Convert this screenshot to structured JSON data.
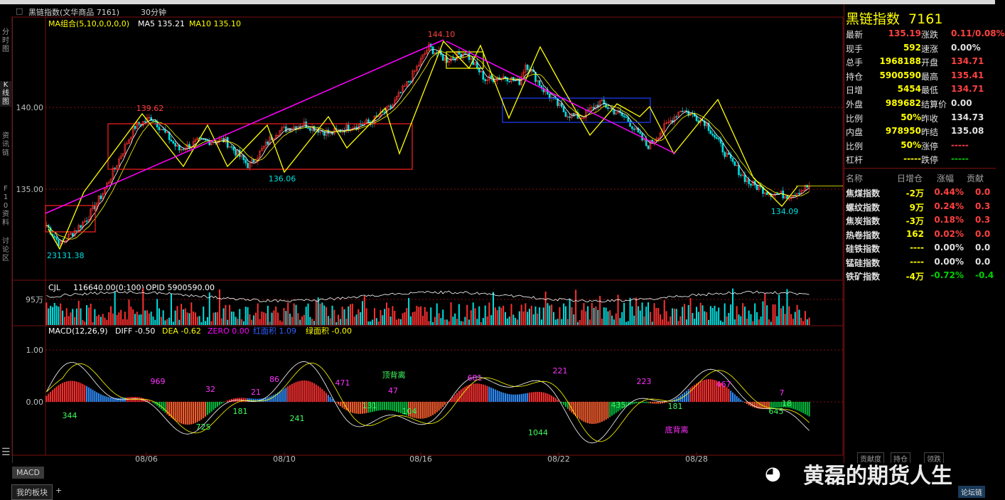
{
  "window": {
    "title": "黑链指数(文华商品  7161)",
    "period": "30分钟",
    "code": "7161",
    "name": "黑链指数"
  },
  "left_nav": [
    {
      "label": "分时图",
      "active": false
    },
    {
      "label": "K线图",
      "active": true
    },
    {
      "label": "资讯链",
      "active": false
    },
    {
      "label": "F10资料",
      "active": false
    },
    {
      "label": "讨论区",
      "active": false
    }
  ],
  "main_legend": {
    "ma_group": "MA组合(5,10,0,0,0,0)",
    "ma5": "MA5 135.21",
    "ma10": "MA10 135.10"
  },
  "price_axis": {
    "labels": [
      "140.00",
      "135.00"
    ]
  },
  "annotations": {
    "high_main": "144.10",
    "high_left": "139.62",
    "low_mid": "136.06",
    "low_right": "134.09",
    "low_left": "131.38",
    "low_left_prefix": "23"
  },
  "volume_legend": {
    "cjl": "CJL",
    "value": "116640.00(0:100)",
    "opid": "OPID 5900590.00",
    "axis_label": "95万"
  },
  "macd_legend": {
    "name": "MACD(12,26,9)",
    "diff": "DIFF -0.50",
    "dea": "DEA -0.62",
    "zero": "ZERO 0.00",
    "red_area": "红面积 1.09",
    "green_area": "绿面积 -0.00"
  },
  "macd_axis": {
    "labels": [
      "1.00",
      "0.00"
    ]
  },
  "macd_annotations": [
    {
      "text": "344",
      "color": "green"
    },
    {
      "text": "969",
      "color": "magenta"
    },
    {
      "text": "725",
      "color": "green"
    },
    {
      "text": "32",
      "color": "magenta"
    },
    {
      "text": "181",
      "color": "green"
    },
    {
      "text": "21",
      "color": "magenta"
    },
    {
      "text": "86",
      "color": "magenta"
    },
    {
      "text": "241",
      "color": "green"
    },
    {
      "text": "471",
      "color": "magenta"
    },
    {
      "text": "131",
      "color": "green"
    },
    {
      "text": "顶背离",
      "color": "green"
    },
    {
      "text": "47",
      "color": "magenta"
    },
    {
      "text": "104",
      "color": "green"
    },
    {
      "text": "681",
      "color": "magenta"
    },
    {
      "text": "1044",
      "color": "green"
    },
    {
      "text": "221",
      "color": "magenta"
    },
    {
      "text": "435",
      "color": "green"
    },
    {
      "text": "223",
      "color": "magenta"
    },
    {
      "text": "181",
      "color": "green"
    },
    {
      "text": "底背离",
      "color": "magenta"
    },
    {
      "text": "467",
      "color": "magenta"
    },
    {
      "text": "645",
      "color": "green"
    },
    {
      "text": "18",
      "color": "green"
    },
    {
      "text": "7",
      "color": "magenta"
    }
  ],
  "date_axis": {
    "labels": [
      "08/06",
      "08/10",
      "08/16",
      "08/22",
      "08/28"
    ]
  },
  "quote": {
    "title_name": "黑链指数",
    "title_code": "7161",
    "rows": [
      [
        {
          "label": "最新",
          "value": "135.19",
          "c": "#ff4040"
        },
        {
          "label": "涨跌",
          "value": "0.11/0.08%",
          "c": "#ff4040"
        }
      ],
      [
        {
          "label": "现手",
          "value": "592",
          "c": "#ffff00"
        },
        {
          "label": "速涨",
          "value": "0.00%",
          "c": "#e0e0e0"
        }
      ],
      [
        {
          "label": "总手",
          "value": "1968188",
          "c": "#ffff00"
        },
        {
          "label": "开盘",
          "value": "134.71",
          "c": "#ff4040"
        }
      ],
      [
        {
          "label": "持仓",
          "value": "5900590",
          "c": "#ffff00"
        },
        {
          "label": "最高",
          "value": "135.41",
          "c": "#ff4040"
        }
      ],
      [
        {
          "label": "日增",
          "value": "5454",
          "c": "#ffff00"
        },
        {
          "label": "最低",
          "value": "134.71",
          "c": "#ff4040"
        }
      ],
      [
        {
          "label": "外盘",
          "value": "989682",
          "c": "#ffff00"
        },
        {
          "label": "结算价",
          "value": "0.00",
          "c": "#e0e0e0"
        }
      ],
      [
        {
          "label": "比例",
          "value": "50%",
          "c": "#ffff00"
        },
        {
          "label": "昨收",
          "value": "134.73",
          "c": "#e0e0e0"
        }
      ],
      [
        {
          "label": "内盘",
          "value": "978950",
          "c": "#ffff00"
        },
        {
          "label": "昨结",
          "value": "135.08",
          "c": "#e0e0e0"
        }
      ],
      [
        {
          "label": "比例",
          "value": "50%",
          "c": "#ffff00"
        },
        {
          "label": "涨停",
          "value": "-----",
          "c": "#ff4040"
        }
      ],
      [
        {
          "label": "杠杆",
          "value": "-----",
          "c": "#ffff00"
        },
        {
          "label": "跌停",
          "value": "-----",
          "c": "#00d000"
        }
      ]
    ]
  },
  "component_table": {
    "headers": [
      "名称",
      "日增仓",
      "涨幅",
      "贡献"
    ],
    "rows": [
      {
        "name": "焦煤指数",
        "inc": "-2万",
        "chg": "0.44%",
        "contrib": "0.0",
        "c": "#ff4040"
      },
      {
        "name": "螺纹指数",
        "inc": "9万",
        "chg": "0.24%",
        "contrib": "0.3",
        "c": "#ff4040"
      },
      {
        "name": "焦炭指数",
        "inc": "-3万",
        "chg": "0.18%",
        "contrib": "0.3",
        "c": "#ff4040"
      },
      {
        "name": "热卷指数",
        "inc": "162",
        "chg": "0.02%",
        "contrib": "0.0",
        "c": "#ff4040"
      },
      {
        "name": "硅铁指数",
        "inc": "----",
        "chg": "0.00%",
        "contrib": "0.0",
        "c": "#e0e0e0"
      },
      {
        "name": "锰硅指数",
        "inc": "----",
        "chg": "0.00%",
        "contrib": "0.0",
        "c": "#e0e0e0"
      },
      {
        "name": "铁矿指数",
        "inc": "-4万",
        "chg": "-0.72%",
        "contrib": "-0.4",
        "c": "#00d000"
      }
    ]
  },
  "right_bottom_tabs": [
    "贡献度",
    "持仓",
    "领跌"
  ],
  "bottom_tabs": {
    "indicator": "MACD",
    "board": "我的板块",
    "add": "+"
  },
  "watermark": "黄磊的期货人生",
  "forum_badge": "论坛链",
  "colors": {
    "up": "#ff3030",
    "down": "#00e0e0",
    "ma5": "#ffffff",
    "ma10": "#ffff00",
    "macd_pos": "#ff3030",
    "macd_neg": "#00c040",
    "trend": "#ff00ff"
  }
}
